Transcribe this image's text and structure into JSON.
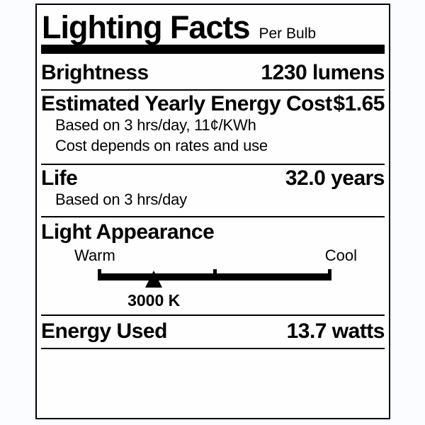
{
  "label": {
    "title": "Lighting Facts",
    "subtitle": "Per Bulb",
    "rows": {
      "brightness": {
        "name": "Brightness",
        "value": "1230 lumens"
      },
      "energy_cost": {
        "name": "Estimated Yearly Energy Cost",
        "value": "$1.65",
        "notes": [
          "Based on 3 hrs/day, 11¢/KWh",
          "Cost depends on rates and use"
        ]
      },
      "life": {
        "name": "Life",
        "value": "32.0 years",
        "note": "Based on 3 hrs/day"
      },
      "light_appearance": {
        "name": "Light Appearance",
        "warm_label": "Warm",
        "cool_label": "Cool",
        "kelvin": "3000 K",
        "marker_position_pct": 24
      },
      "energy_used": {
        "name": "Energy Used",
        "value": "13.7 watts"
      }
    },
    "colors": {
      "ink": "#000000",
      "paper": "#fefeff",
      "page_background": "#fbfcff"
    }
  }
}
